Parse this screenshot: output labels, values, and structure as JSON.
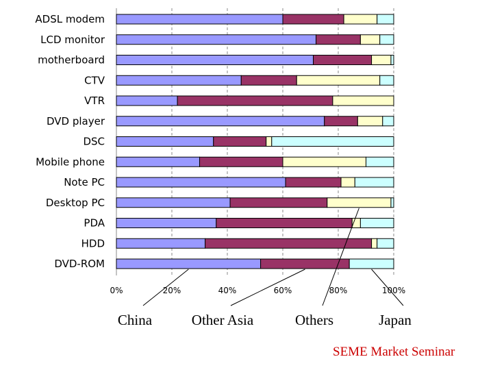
{
  "chart_data": {
    "type": "bar",
    "orientation": "horizontal",
    "stacked": true,
    "percent": true,
    "categories": [
      "ADSL modem",
      "LCD monitor",
      "motherboard",
      "CTV",
      "VTR",
      "DVD player",
      "DSC",
      "Mobile phone",
      "Note PC",
      "Desktop PC",
      "PDA",
      "HDD",
      "DVD-ROM"
    ],
    "series": [
      {
        "name": "China",
        "color": "#9999ff",
        "values": [
          60,
          72,
          71,
          45,
          22,
          75,
          35,
          30,
          61,
          41,
          36,
          32,
          52
        ]
      },
      {
        "name": "Other Asia",
        "color": "#993366",
        "values": [
          22,
          16,
          21,
          20,
          56,
          12,
          19,
          30,
          20,
          35,
          49,
          60,
          32
        ]
      },
      {
        "name": "Others",
        "color": "#ffffcc",
        "values": [
          12,
          7,
          7,
          30,
          22,
          9,
          2,
          30,
          5,
          23,
          3,
          2,
          0
        ]
      },
      {
        "name": "Japan",
        "color": "#ccffff",
        "values": [
          6,
          5,
          1,
          5,
          0,
          4,
          44,
          10,
          14,
          1,
          12,
          6,
          16
        ]
      }
    ],
    "xlim": [
      0,
      100
    ],
    "x_ticks": [
      "0%",
      "20%",
      "40%",
      "60%",
      "80%",
      "100%"
    ],
    "grid": "vertical dashed",
    "legend": "below chart, labels pointed to bars with leader lines"
  },
  "footer": "SEME Market Seminar"
}
